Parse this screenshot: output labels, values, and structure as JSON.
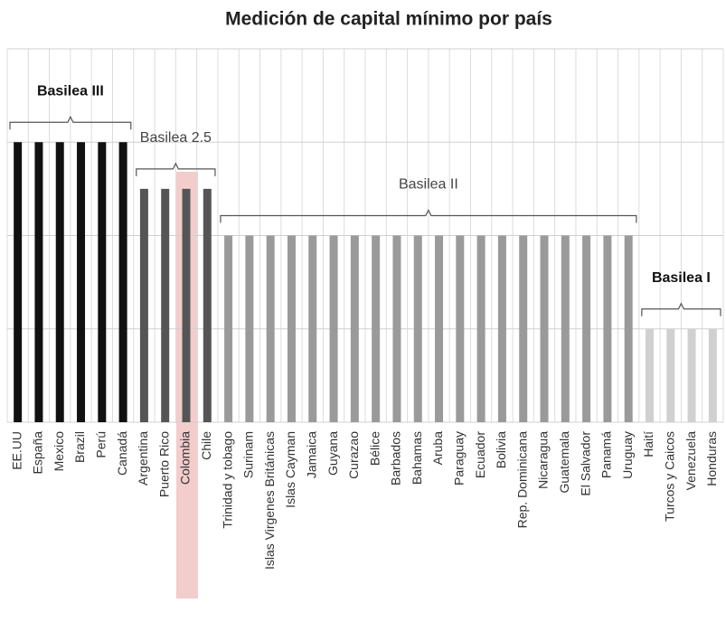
{
  "chart_data": {
    "type": "bar",
    "title": "Medición de capital mínimo por país",
    "categories": [
      "EE.UU",
      "España",
      "Mexico",
      "Brazil",
      "Perú",
      "Canadá",
      "Argentina",
      "Puerto Rico",
      "Colombia",
      "Chile",
      "Trinidad y tobago",
      "Surinam",
      "Islas Virgenes Británicas",
      "Islas Cayman",
      "Jamaica",
      "Guyana",
      "Curazao",
      "Bélice",
      "Barbados",
      "Bahamas",
      "Aruba",
      "Paraguay",
      "Ecuador",
      "Bolivia",
      "Rep. Dominicana",
      "Nicaragua",
      "Guatemala",
      "El Salvador",
      "Panamá",
      "Uruguay",
      "Haití",
      "Turcos y Caicos",
      "Venezuela",
      "Honduras"
    ],
    "series": [
      {
        "name": "Basilea III",
        "color": "#111111",
        "bold": true,
        "values": [
          3,
          3,
          3,
          3,
          3,
          3,
          null,
          null,
          null,
          null,
          null,
          null,
          null,
          null,
          null,
          null,
          null,
          null,
          null,
          null,
          null,
          null,
          null,
          null,
          null,
          null,
          null,
          null,
          null,
          null,
          null,
          null,
          null,
          null
        ]
      },
      {
        "name": "Basilea 2.5",
        "color": "#555555",
        "bold": false,
        "values": [
          null,
          null,
          null,
          null,
          null,
          null,
          2.5,
          2.5,
          2.5,
          2.5,
          null,
          null,
          null,
          null,
          null,
          null,
          null,
          null,
          null,
          null,
          null,
          null,
          null,
          null,
          null,
          null,
          null,
          null,
          null,
          null,
          null,
          null,
          null,
          null
        ]
      },
      {
        "name": "Basilea II",
        "color": "#9a9a9a",
        "bold": false,
        "values": [
          null,
          null,
          null,
          null,
          null,
          null,
          null,
          null,
          null,
          null,
          2,
          2,
          2,
          2,
          2,
          2,
          2,
          2,
          2,
          2,
          2,
          2,
          2,
          2,
          2,
          2,
          2,
          2,
          2,
          2,
          null,
          null,
          null,
          null
        ]
      },
      {
        "name": "Basilea I",
        "color": "#d0d0d0",
        "bold": true,
        "values": [
          null,
          null,
          null,
          null,
          null,
          null,
          null,
          null,
          null,
          null,
          null,
          null,
          null,
          null,
          null,
          null,
          null,
          null,
          null,
          null,
          null,
          null,
          null,
          null,
          null,
          null,
          null,
          null,
          null,
          null,
          1,
          1,
          1,
          1
        ]
      }
    ],
    "ylim": [
      0,
      4
    ],
    "yticks": [
      0,
      1,
      2,
      3,
      4
    ],
    "grid": true
  }
}
